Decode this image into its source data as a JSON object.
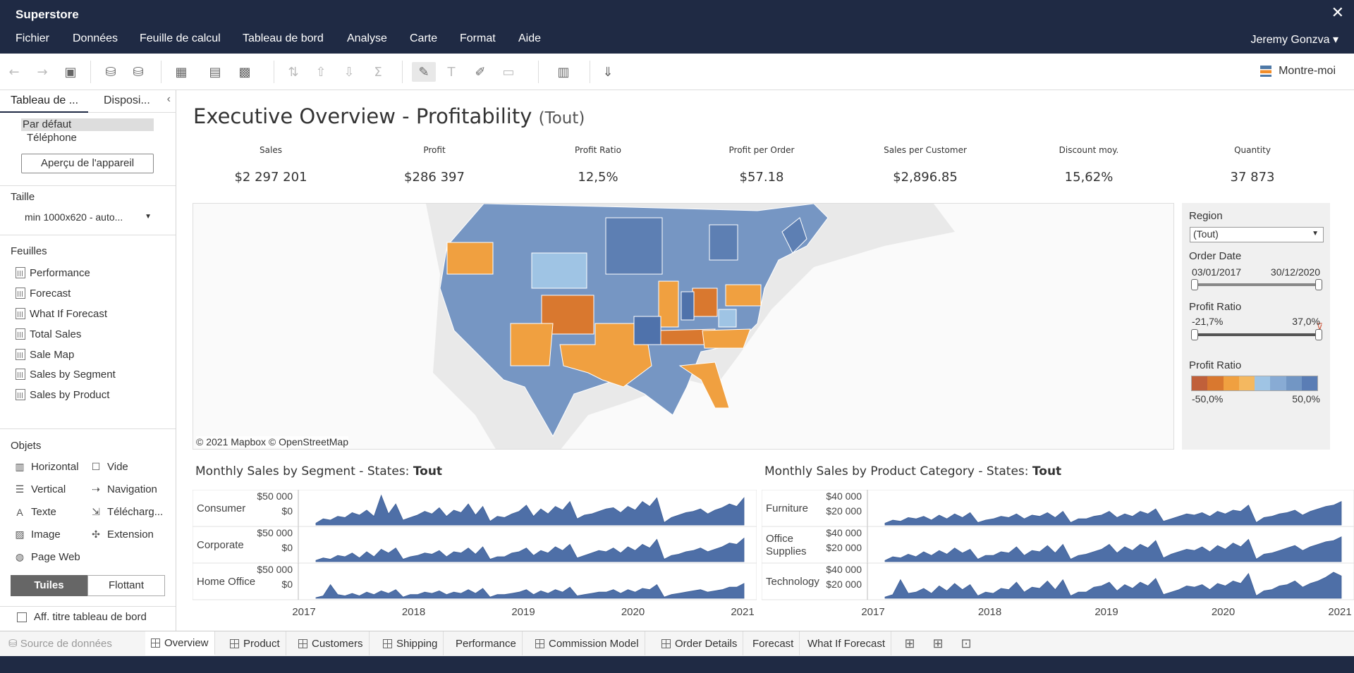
{
  "app": {
    "title": "Superstore"
  },
  "menu": {
    "items": [
      "Fichier",
      "Données",
      "Feuille de calcul",
      "Tableau de bord",
      "Analyse",
      "Carte",
      "Format",
      "Aide"
    ],
    "user": "Jeremy Gonzva ▾"
  },
  "toolbar": {
    "show_me": "Montre-moi"
  },
  "sidebar": {
    "tab_dashboard": "Tableau de ...",
    "tab_layout": "Disposi...",
    "devices": [
      "Par défaut",
      "Téléphone"
    ],
    "device_preview": "Aperçu de l'appareil",
    "size_title": "Taille",
    "size_value": "min 1000x620 - auto...",
    "sheets_title": "Feuilles",
    "sheets": [
      "Performance",
      "Forecast",
      "What If Forecast",
      "Total Sales",
      "Sale Map",
      "Sales by Segment",
      "Sales by Product"
    ],
    "objects_title": "Objets",
    "objects": {
      "horizontal": "Horizontal",
      "blank": "Vide",
      "vertical": "Vertical",
      "navigation": "Navigation",
      "text": "Texte",
      "download": "Télécharg...",
      "image": "Image",
      "extension": "Extension",
      "webpage": "Page Web"
    },
    "tiled": "Tuiles",
    "floating": "Flottant",
    "show_title": "Aff. titre tableau de bord"
  },
  "dashboard": {
    "title": "Executive Overview - Profitability",
    "title_suffix": "(Tout)",
    "kpis": [
      {
        "label": "Sales",
        "value": "$2 297 201"
      },
      {
        "label": "Profit",
        "value": "$286 397"
      },
      {
        "label": "Profit Ratio",
        "value": "12,5%"
      },
      {
        "label": "Profit per Order",
        "value": "$57.18"
      },
      {
        "label": "Sales per Customer",
        "value": "$2,896.85"
      },
      {
        "label": "Discount moy.",
        "value": "15,62%"
      },
      {
        "label": "Quantity",
        "value": "37 873"
      }
    ],
    "map_credit": "© 2021 Mapbox  © OpenStreetMap"
  },
  "filters": {
    "region_label": "Region",
    "region_value": "(Tout)",
    "order_date_label": "Order Date",
    "order_date_min": "03/01/2017",
    "order_date_max": "30/12/2020",
    "profit_ratio_label": "Profit Ratio",
    "profit_ratio_min": "-21,7%",
    "profit_ratio_max": "37,0%",
    "legend_label": "Profit Ratio",
    "legend_min": "-50,0%",
    "legend_max": "50,0%",
    "legend_colors": [
      "#c0603a",
      "#d9782f",
      "#f0a040",
      "#f4b860",
      "#9fc4e4",
      "#88abd4",
      "#7296c4",
      "#5a7db5"
    ]
  },
  "chart_data": [
    {
      "type": "area",
      "title": "Monthly Sales by Segment - States: ",
      "title_bold": "Tout",
      "series": [
        {
          "name": "Consumer",
          "tick_labels": [
            "$50 000",
            "$0"
          ],
          "values": [
            3,
            10,
            8,
            14,
            12,
            20,
            16,
            24,
            14,
            48,
            18,
            34,
            8,
            12,
            16,
            22,
            18,
            28,
            14,
            24,
            20,
            34,
            16,
            30,
            6,
            14,
            12,
            18,
            22,
            32,
            14,
            26,
            18,
            30,
            24,
            38,
            10,
            16,
            18,
            22,
            26,
            28,
            20,
            30,
            24,
            38,
            30,
            44,
            4,
            12,
            16,
            20,
            22,
            26,
            18,
            24,
            28,
            34,
            30,
            44
          ]
        },
        {
          "name": "Corporate",
          "tick_labels": [
            "$50 000",
            "$0"
          ],
          "values": [
            2,
            6,
            4,
            10,
            8,
            14,
            6,
            16,
            8,
            20,
            14,
            22,
            4,
            8,
            10,
            14,
            12,
            18,
            8,
            16,
            14,
            22,
            12,
            24,
            4,
            8,
            8,
            14,
            16,
            22,
            10,
            18,
            14,
            24,
            18,
            28,
            6,
            10,
            14,
            18,
            16,
            22,
            14,
            24,
            18,
            28,
            22,
            36,
            4,
            10,
            12,
            16,
            18,
            22,
            16,
            20,
            24,
            30,
            28,
            38
          ]
        },
        {
          "name": "Home Office",
          "tick_labels": [
            "$50 000",
            "$0"
          ],
          "values": [
            1,
            4,
            22,
            6,
            4,
            8,
            4,
            10,
            6,
            12,
            8,
            14,
            2,
            6,
            6,
            10,
            8,
            12,
            6,
            10,
            8,
            14,
            8,
            16,
            2,
            6,
            6,
            8,
            10,
            14,
            6,
            12,
            8,
            14,
            10,
            18,
            4,
            6,
            8,
            10,
            10,
            14,
            8,
            14,
            10,
            16,
            14,
            22,
            2,
            6,
            8,
            10,
            12,
            14,
            10,
            12,
            14,
            18,
            18,
            24
          ]
        }
      ],
      "x_ticks": [
        "2017",
        "2018",
        "2019",
        "2020",
        "2021"
      ]
    },
    {
      "type": "area",
      "title": "Monthly Sales by Product Category - States: ",
      "title_bold": "Tout",
      "series": [
        {
          "name": "Furniture",
          "tick_labels": [
            "$40 000",
            "$20 000"
          ],
          "values": [
            3,
            8,
            6,
            12,
            10,
            14,
            8,
            16,
            10,
            18,
            12,
            20,
            4,
            8,
            10,
            14,
            12,
            18,
            10,
            16,
            14,
            20,
            12,
            22,
            4,
            10,
            10,
            14,
            16,
            22,
            12,
            18,
            14,
            22,
            18,
            26,
            6,
            10,
            14,
            18,
            16,
            20,
            14,
            22,
            18,
            24,
            22,
            32,
            4,
            12,
            14,
            18,
            20,
            24,
            16,
            22,
            26,
            30,
            32,
            38
          ]
        },
        {
          "name": "Office\nSupplies",
          "tick_labels": [
            "$40 000",
            "$20 000"
          ],
          "values": [
            2,
            8,
            6,
            12,
            8,
            16,
            10,
            18,
            12,
            22,
            14,
            20,
            4,
            10,
            10,
            16,
            14,
            24,
            10,
            18,
            16,
            26,
            14,
            28,
            4,
            10,
            12,
            16,
            20,
            28,
            14,
            24,
            18,
            28,
            22,
            34,
            6,
            12,
            16,
            20,
            18,
            24,
            16,
            26,
            20,
            30,
            24,
            36,
            4,
            12,
            14,
            18,
            22,
            26,
            18,
            24,
            28,
            32,
            34,
            40
          ]
        },
        {
          "name": "Technology",
          "tick_labels": [
            "$40 000",
            "$20 000"
          ],
          "values": [
            2,
            6,
            30,
            8,
            10,
            16,
            8,
            20,
            12,
            24,
            14,
            22,
            4,
            10,
            8,
            16,
            14,
            26,
            10,
            18,
            16,
            28,
            14,
            30,
            4,
            10,
            10,
            18,
            20,
            26,
            12,
            22,
            16,
            26,
            20,
            32,
            6,
            10,
            14,
            20,
            18,
            22,
            14,
            24,
            20,
            28,
            24,
            40,
            4,
            12,
            14,
            20,
            22,
            28,
            18,
            24,
            28,
            34,
            42,
            36
          ]
        }
      ],
      "x_ticks": [
        "2017",
        "2018",
        "2019",
        "2020",
        "2021"
      ]
    }
  ],
  "tabs": {
    "datasource": "Source de données",
    "items": [
      "Overview",
      "Product",
      "Customers",
      "Shipping",
      "Performance",
      "Commission Model",
      "Order Details",
      "Forecast",
      "What If Forecast"
    ]
  }
}
